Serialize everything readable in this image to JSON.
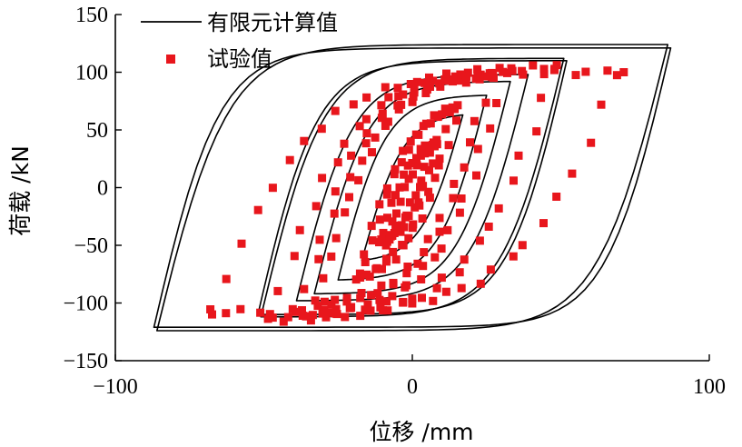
{
  "chart_data": {
    "type": "line",
    "title": "",
    "xlabel": "位移 /mm",
    "ylabel": "荷载 /kN",
    "xlim": [
      -100,
      100
    ],
    "ylim": [
      -150,
      150
    ],
    "xticks": [
      "−100",
      "0",
      "100"
    ],
    "yticks": [
      "150",
      "100",
      "50",
      "0",
      "−50",
      "−100",
      "−150"
    ],
    "grid": false,
    "legend": "top-left",
    "series": [
      {
        "name": "有限元计算值",
        "style": "line",
        "color": "#000000",
        "loops": [
          {
            "amplitude": 86,
            "peak": 124,
            "yield_disp": 24
          },
          {
            "amplitude": 87,
            "peak": 121,
            "yield_disp": 22
          },
          {
            "amplitude": 51,
            "peak": 112,
            "yield_disp": 21
          },
          {
            "amplitude": 52,
            "peak": 110,
            "yield_disp": 20
          },
          {
            "amplitude": 39,
            "peak": 98,
            "yield_disp": 19
          },
          {
            "amplitude": 33,
            "peak": 92,
            "yield_disp": 18
          },
          {
            "amplitude": 25,
            "peak": 80,
            "yield_disp": 16
          },
          {
            "amplitude": 17,
            "peak": 63,
            "yield_disp": 14
          }
        ]
      },
      {
        "name": "试验值",
        "style": "markers",
        "color": "#e8161c",
        "loops": [
          {
            "amplitude": 70,
            "peak": 100,
            "neg_amplitude": 68,
            "neg_peak": 108,
            "yield_disp": 36
          },
          {
            "amplitude": 48,
            "peak": 104,
            "neg_amplitude": 48,
            "neg_peak": 114,
            "yield_disp": 30
          },
          {
            "amplitude": 31,
            "peak": 98,
            "neg_amplitude": 38,
            "neg_peak": 110,
            "yield_disp": 24
          },
          {
            "amplitude": 26,
            "peak": 96,
            "neg_amplitude": 32,
            "neg_peak": 100,
            "yield_disp": 22
          },
          {
            "amplitude": 15,
            "peak": 70,
            "neg_amplitude": 18,
            "neg_peak": 78,
            "yield_disp": 18
          },
          {
            "amplitude": 8,
            "peak": 40,
            "neg_amplitude": 10,
            "neg_peak": 48,
            "yield_disp": 12
          }
        ]
      }
    ]
  }
}
